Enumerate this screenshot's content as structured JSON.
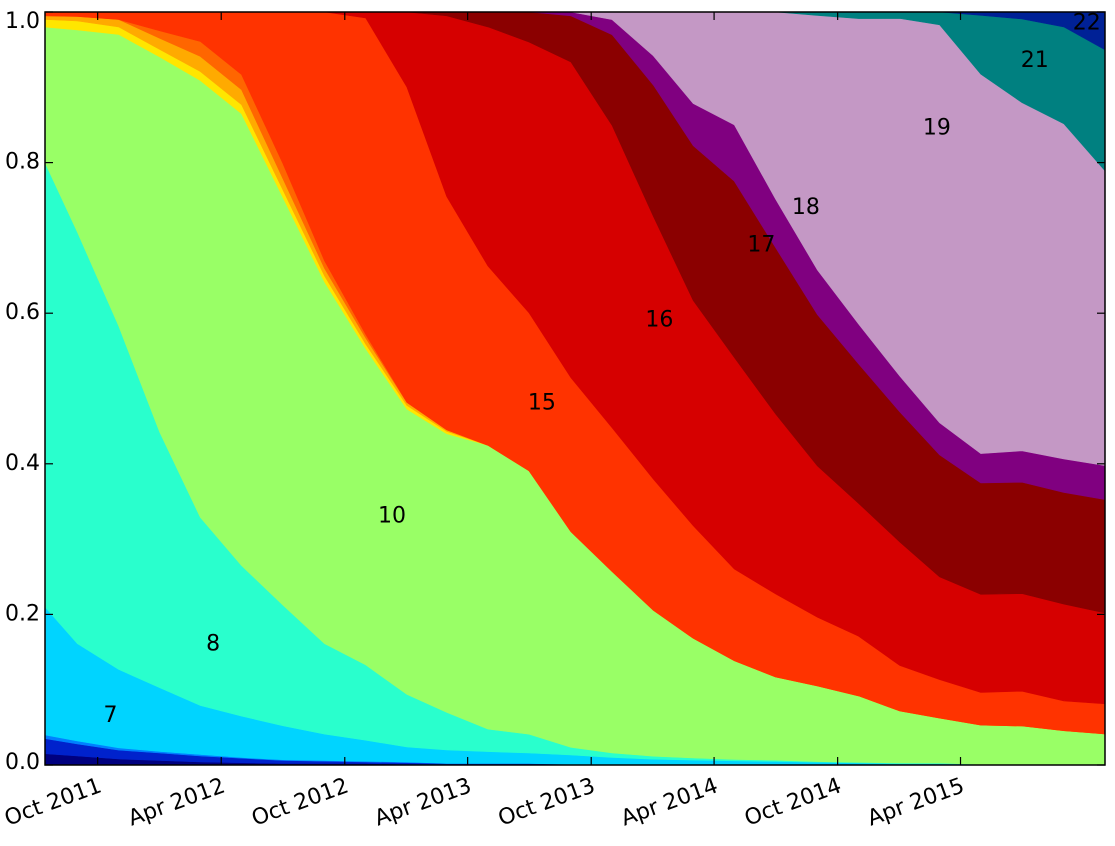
{
  "chart_data": {
    "type": "area",
    "stacked": "normalized",
    "title": "",
    "xlabel": "",
    "ylabel": "",
    "xlim": [
      "2011-07-15",
      "2015-11-01"
    ],
    "ylim": [
      0,
      1
    ],
    "legend": "none",
    "grid": false,
    "yticks": [
      {
        "value": 0.0,
        "label": "0.0"
      },
      {
        "value": 0.2,
        "label": "0.2"
      },
      {
        "value": 0.4,
        "label": "0.4"
      },
      {
        "value": 0.6,
        "label": "0.6"
      },
      {
        "value": 0.8,
        "label": "0.8"
      },
      {
        "value": 1.0,
        "label": "1.0"
      }
    ],
    "xticks": [
      {
        "value": "2011-10-01",
        "label": "Oct 2011"
      },
      {
        "value": "2012-04-01",
        "label": "Apr 2012"
      },
      {
        "value": "2012-10-01",
        "label": "Oct 2012"
      },
      {
        "value": "2013-04-01",
        "label": "Apr 2013"
      },
      {
        "value": "2013-10-01",
        "label": "Oct 2013"
      },
      {
        "value": "2014-04-01",
        "label": "Apr 2014"
      },
      {
        "value": "2014-10-01",
        "label": "Oct 2014"
      },
      {
        "value": "2015-04-01",
        "label": "Apr 2015"
      }
    ],
    "x": [
      "2011-07-15",
      "2011-09-01",
      "2011-11-01",
      "2012-01-01",
      "2012-03-01",
      "2012-05-01",
      "2012-07-01",
      "2012-09-01",
      "2012-11-01",
      "2013-01-01",
      "2013-03-01",
      "2013-05-01",
      "2013-07-01",
      "2013-09-01",
      "2013-11-01",
      "2014-01-01",
      "2014-03-01",
      "2014-05-01",
      "2014-07-01",
      "2014-09-01",
      "2014-11-01",
      "2015-01-01",
      "2015-03-01",
      "2015-05-01",
      "2015-07-01",
      "2015-09-01",
      "2015-11-01"
    ],
    "series": [
      {
        "name": "",
        "color": "#00007f",
        "values": [
          0.015,
          0.012,
          0.008,
          0.006,
          0.004,
          0.003,
          0.002,
          0.002,
          0.002,
          0.001,
          0.001,
          0.001,
          0.001,
          0,
          0,
          0,
          0,
          0,
          0,
          0,
          0,
          0,
          0,
          0,
          0,
          0,
          0
        ]
      },
      {
        "name": "",
        "color": "#0022cc",
        "values": [
          0.02,
          0.016,
          0.012,
          0.01,
          0.008,
          0.006,
          0.004,
          0.003,
          0.002,
          0.002,
          0.001,
          0.001,
          0.001,
          0.001,
          0,
          0,
          0,
          0,
          0,
          0,
          0,
          0,
          0,
          0,
          0,
          0,
          0
        ]
      },
      {
        "name": "",
        "color": "#0080ff",
        "values": [
          0.005,
          0.004,
          0.003,
          0.002,
          0.002,
          0.001,
          0.001,
          0.001,
          0.001,
          0.001,
          0,
          0,
          0,
          0,
          0,
          0,
          0,
          0,
          0,
          0,
          0,
          0,
          0,
          0,
          0,
          0,
          0
        ]
      },
      {
        "name": "7",
        "color": "#00d4ff",
        "values": [
          0.17,
          0.13,
          0.105,
          0.085,
          0.065,
          0.055,
          0.045,
          0.035,
          0.028,
          0.02,
          0.018,
          0.016,
          0.014,
          0.012,
          0.01,
          0.008,
          0.007,
          0.006,
          0.005,
          0.004,
          0.003,
          0.002,
          0.002,
          0.001,
          0.001,
          0.001,
          0.001
        ]
      },
      {
        "name": "8",
        "color": "#29ffcd",
        "values": [
          0.59,
          0.55,
          0.46,
          0.34,
          0.25,
          0.2,
          0.16,
          0.12,
          0.1,
          0.07,
          0.05,
          0.03,
          0.025,
          0.01,
          0.006,
          0.004,
          0.003,
          0.002,
          0.002,
          0.001,
          0.001,
          0.001,
          0.001,
          0,
          0,
          0,
          0
        ]
      },
      {
        "name": "10",
        "color": "#99ff66",
        "values": [
          0.18,
          0.27,
          0.39,
          0.5,
          0.58,
          0.6,
          0.54,
          0.48,
          0.42,
          0.38,
          0.37,
          0.38,
          0.35,
          0.28,
          0.24,
          0.2,
          0.17,
          0.14,
          0.12,
          0.11,
          0.1,
          0.08,
          0.07,
          0.06,
          0.055,
          0.045,
          0.04
        ]
      },
      {
        "name": "",
        "color": "#ffe600",
        "values": [
          0.01,
          0.012,
          0.01,
          0.01,
          0.012,
          0.012,
          0.01,
          0.008,
          0.006,
          0.005,
          0.003,
          0,
          0,
          0,
          0,
          0,
          0,
          0,
          0,
          0,
          0,
          0,
          0,
          0,
          0,
          0,
          0
        ]
      },
      {
        "name": "",
        "color": "#ffaa00",
        "values": [
          0.005,
          0.006,
          0.01,
          0.015,
          0.02,
          0.02,
          0.015,
          0.01,
          0.008,
          0.004,
          0.002,
          0,
          0,
          0,
          0,
          0,
          0,
          0,
          0,
          0,
          0,
          0,
          0,
          0,
          0,
          0,
          0
        ]
      },
      {
        "name": "",
        "color": "#ff6600",
        "values": [
          0,
          0,
          0,
          0.01,
          0.02,
          0.02,
          0.02,
          0.01,
          0.005,
          0,
          0,
          0,
          0,
          0,
          0,
          0,
          0,
          0,
          0,
          0,
          0,
          0,
          0,
          0,
          0,
          0,
          0
        ]
      },
      {
        "name": "15",
        "color": "#ff3300",
        "values": [
          0.005,
          0.006,
          0.01,
          0.025,
          0.039,
          0.083,
          0.2,
          0.33,
          0.42,
          0.42,
          0.31,
          0.24,
          0.21,
          0.2,
          0.19,
          0.18,
          0.16,
          0.13,
          0.12,
          0.1,
          0.09,
          0.07,
          0.06,
          0.05,
          0.05,
          0.04,
          0.04
        ]
      },
      {
        "name": "16",
        "color": "#d60000",
        "values": [
          0,
          0,
          0,
          0,
          0,
          0,
          0,
          0,
          0.008,
          0.1,
          0.24,
          0.32,
          0.36,
          0.41,
          0.4,
          0.36,
          0.32,
          0.3,
          0.26,
          0.22,
          0.2,
          0.19,
          0.16,
          0.15,
          0.14,
          0.13,
          0.12
        ]
      },
      {
        "name": "17",
        "color": "#8b0000",
        "values": [
          0,
          0,
          0,
          0,
          0,
          0,
          0,
          0,
          0,
          0,
          0.005,
          0.02,
          0.04,
          0.06,
          0.12,
          0.18,
          0.22,
          0.25,
          0.24,
          0.22,
          0.21,
          0.2,
          0.19,
          0.17,
          0.16,
          0.15,
          0.15
        ]
      },
      {
        "name": "18",
        "color": "#800080",
        "values": [
          0,
          0,
          0,
          0,
          0,
          0,
          0,
          0,
          0,
          0,
          0,
          0,
          0,
          0.005,
          0.02,
          0.04,
          0.06,
          0.08,
          0.07,
          0.065,
          0.06,
          0.055,
          0.05,
          0.045,
          0.045,
          0.045,
          0.045
        ]
      },
      {
        "name": "19",
        "color": "#c498c5",
        "values": [
          0,
          0,
          0,
          0,
          0,
          0,
          0,
          0,
          0,
          0,
          0,
          0,
          0,
          0,
          0.01,
          0.06,
          0.13,
          0.16,
          0.27,
          0.37,
          0.46,
          0.55,
          0.62,
          0.58,
          0.5,
          0.45,
          0.39
        ]
      },
      {
        "name": "21",
        "color": "#008080",
        "values": [
          0,
          0,
          0,
          0,
          0,
          0,
          0,
          0,
          0,
          0,
          0,
          0,
          0,
          0,
          0,
          0,
          0,
          0,
          0,
          0.005,
          0.01,
          0.01,
          0.02,
          0.09,
          0.12,
          0.13,
          0.16
        ]
      },
      {
        "name": "22",
        "color": "#002196",
        "values": [
          0,
          0,
          0,
          0,
          0,
          0,
          0,
          0,
          0,
          0,
          0,
          0,
          0,
          0,
          0,
          0,
          0,
          0,
          0,
          0,
          0,
          0,
          0,
          0.005,
          0.01,
          0.02,
          0.05
        ]
      }
    ],
    "labels": [
      {
        "text": "7",
        "series": "7",
        "x": "2011-10-20",
        "y": 0.065
      },
      {
        "text": "8",
        "series": "8",
        "x": "2012-03-20",
        "y": 0.16
      },
      {
        "text": "10",
        "series": "10",
        "x": "2012-12-10",
        "y": 0.33
      },
      {
        "text": "15",
        "series": "15",
        "x": "2013-07-20",
        "y": 0.48
      },
      {
        "text": "16",
        "series": "16",
        "x": "2014-01-10",
        "y": 0.59
      },
      {
        "text": "17",
        "series": "17",
        "x": "2014-06-10",
        "y": 0.69
      },
      {
        "text": "18",
        "series": "18",
        "x": "2014-08-15",
        "y": 0.74
      },
      {
        "text": "19",
        "series": "19",
        "x": "2015-02-25",
        "y": 0.845
      },
      {
        "text": "21",
        "series": "21",
        "x": "2015-07-20",
        "y": 0.935
      },
      {
        "text": "22",
        "series": "22",
        "x": "2015-10-05",
        "y": 0.985
      }
    ]
  }
}
